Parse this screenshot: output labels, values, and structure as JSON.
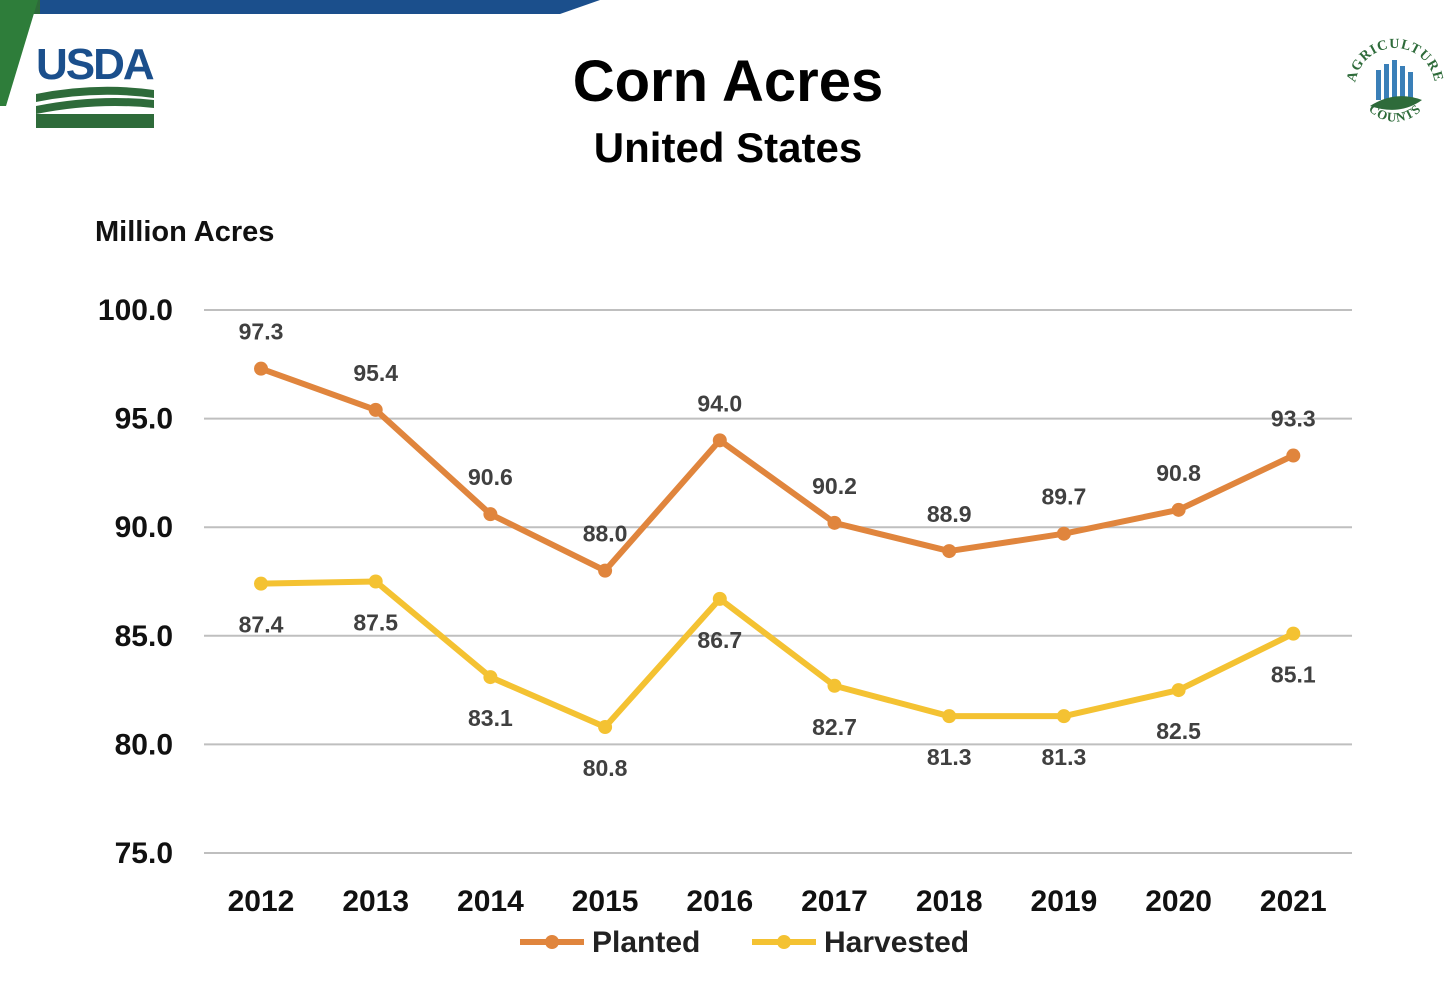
{
  "header": {
    "logo_text": "USDA",
    "ag_logo_top": "AGRICULTURE",
    "ag_logo_bottom": "COUNTS"
  },
  "colors": {
    "planted": "#E0853D",
    "harvested": "#F4C232",
    "grid": "#bfbfbf",
    "usda_blue": "#1b4f8c",
    "usda_green": "#2e6b3a"
  },
  "chart_data": {
    "type": "line",
    "title": "Corn Acres",
    "subtitle": "United States",
    "ylabel": "Million Acres",
    "xlabel": "",
    "categories": [
      "2012",
      "2013",
      "2014",
      "2015",
      "2016",
      "2017",
      "2018",
      "2019",
      "2020",
      "2021"
    ],
    "ylim": [
      75,
      100
    ],
    "yticks": [
      "100.0",
      "95.0",
      "90.0",
      "85.0",
      "80.0",
      "75.0"
    ],
    "grid": true,
    "legend": "bottom-center",
    "series": [
      {
        "name": "Planted",
        "values": [
          97.3,
          95.4,
          90.6,
          88.0,
          94.0,
          90.2,
          88.9,
          89.7,
          90.8,
          93.3
        ],
        "labels": [
          "97.3",
          "95.4",
          "90.6",
          "88.0",
          "94.0",
          "90.2",
          "88.9",
          "89.7",
          "90.8",
          "93.3"
        ]
      },
      {
        "name": "Harvested",
        "values": [
          87.4,
          87.5,
          83.1,
          80.8,
          86.7,
          82.7,
          81.3,
          81.3,
          82.5,
          85.1
        ],
        "labels": [
          "87.4",
          "87.5",
          "83.1",
          "80.8",
          "86.7",
          "82.7",
          "81.3",
          "81.3",
          "82.5",
          "85.1"
        ]
      }
    ]
  }
}
